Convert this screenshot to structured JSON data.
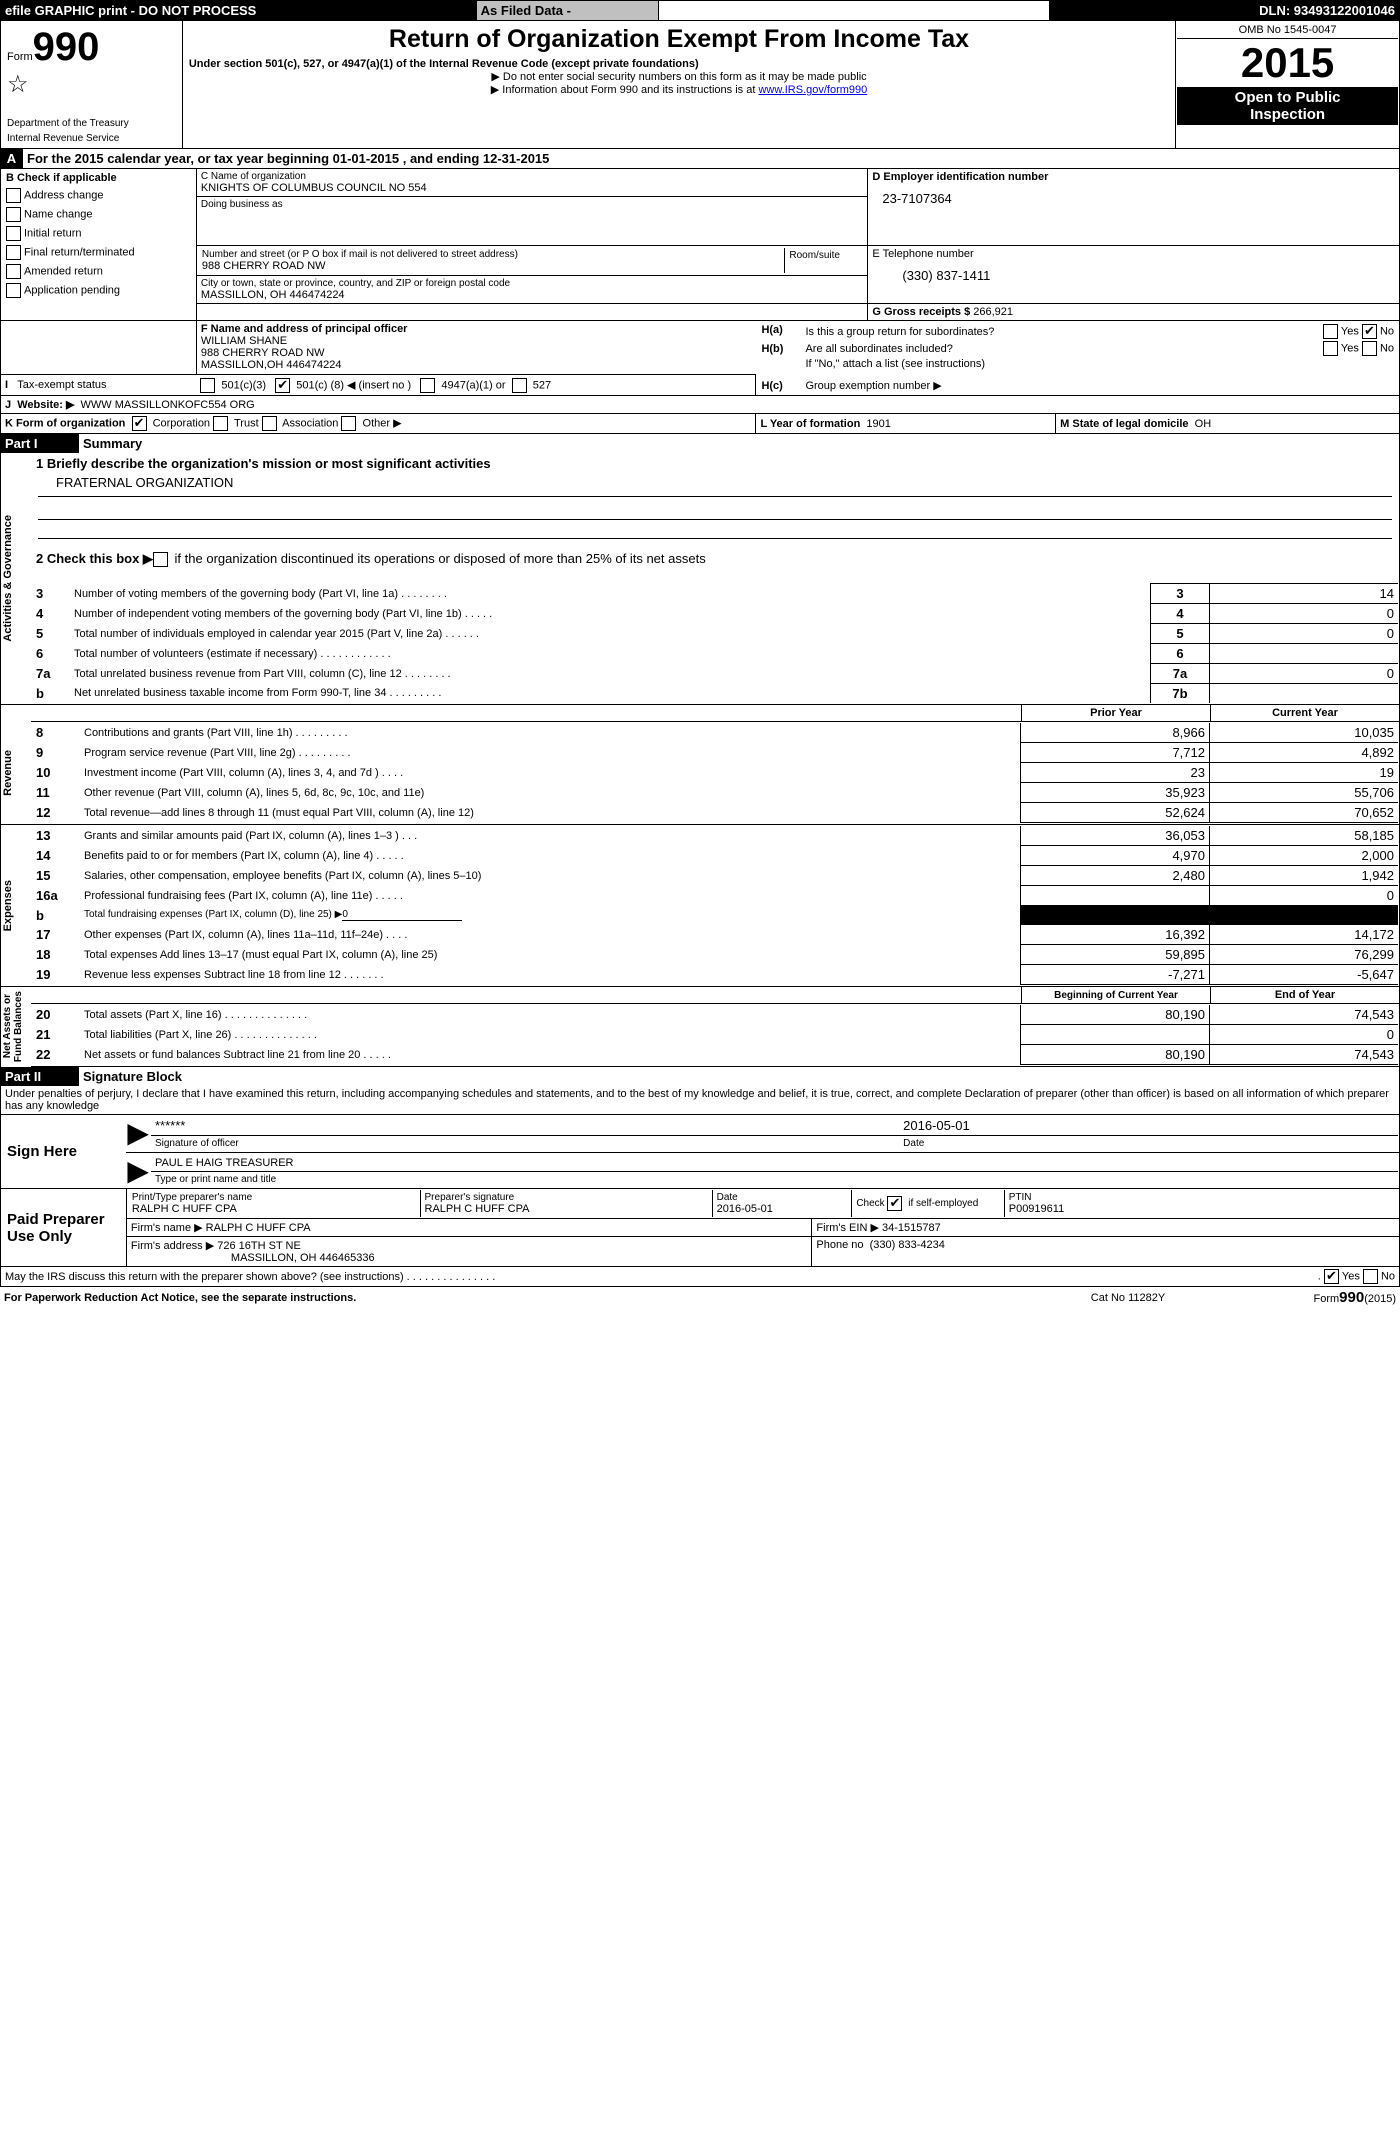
{
  "topbar": {
    "left": "efile GRAPHIC print - DO NOT PROCESS",
    "mid": "As Filed Data -",
    "right": "DLN: 93493122001046"
  },
  "hdr": {
    "form_label": "Form",
    "form_no": "990",
    "dept": "Department of the Treasury\nInternal Revenue Service",
    "title": "Return of Organization Exempt From Income Tax",
    "subtitle": "Under section 501(c), 527, or 4947(a)(1) of the Internal Revenue Code (except private foundations)",
    "note1": "▶ Do not enter social security numbers on this form as it may be made public",
    "note2": "▶ Information about Form 990 and its instructions is at ",
    "link": "www.IRS.gov/form990",
    "omb": "OMB No  1545-0047",
    "year": "2015",
    "open": "Open to Public\nInspection"
  },
  "A": {
    "label": "A",
    "text": "For the 2015 calendar year, or tax year beginning 01-01-2015    , and ending 12-31-2015"
  },
  "B": {
    "label": "B  Check if applicable",
    "items": [
      "Address change",
      "Name change",
      "Initial return",
      "Final return/terminated",
      "Amended return",
      "Application pending"
    ]
  },
  "C": {
    "lblName": "C Name of organization",
    "name": "KNIGHTS OF COLUMBUS COUNCIL NO 554",
    "dba_lbl": "Doing business as",
    "dba": "",
    "addr_lbl": "Number and street (or P O  box if mail is not delivered to street address)",
    "room_lbl": "Room/suite",
    "addr": "988 CHERRY ROAD NW",
    "city_lbl": "City or town, state or province, country, and ZIP or foreign postal code",
    "city": "MASSILLON, OH  446474224"
  },
  "D": {
    "lbl": "D Employer identification number",
    "val": "23-7107364"
  },
  "E": {
    "lbl": "E Telephone number",
    "val": "(330) 837-1411"
  },
  "G": {
    "lbl": "G Gross receipts $",
    "val": "266,921"
  },
  "F": {
    "lbl": "F   Name and address of principal officer",
    "lines": [
      "WILLIAM SHANE",
      "988 CHERRY ROAD NW",
      "MASSILLON,OH 446474224"
    ]
  },
  "H": {
    "a_lbl": "H(a)",
    "a_txt": "Is this a group return for subordinates?",
    "yes": "Yes",
    "no": "No",
    "b_lbl": "H(b)",
    "b_txt": "Are all subordinates included?",
    "b_note": "If \"No,\" attach a list (see instructions)",
    "c_lbl": "H(c)",
    "c_txt": "Group exemption number ▶"
  },
  "I": {
    "lbl": "I",
    "txt": "Tax-exempt status",
    "o1": "501(c)(3)",
    "o2": "501(c) (",
    "o2b": "8",
    "o2c": ") ◀ (insert no )",
    "o3": "4947(a)(1) or",
    "o4": "527"
  },
  "J": {
    "lbl": "J",
    "txt": "Website: ▶",
    "val": "WWW MASSILLONKOFC554 ORG"
  },
  "K": {
    "lbl": "K Form of organization",
    "o1": "Corporation",
    "o2": "Trust",
    "o3": "Association",
    "o4": "Other ▶"
  },
  "L": {
    "lbl": "L Year of formation",
    "val": "1901"
  },
  "M": {
    "lbl": "M State of legal domicile",
    "val": "OH"
  },
  "part1": {
    "hdr": "Part I",
    "title": "Summary",
    "l1": "1 Briefly describe the organization's mission or most significant activities",
    "l1v": "FRATERNAL ORGANIZATION",
    "l2": "2  Check this box ▶",
    "l2b": "if the organization discontinued its operations or disposed of more than 25% of its net assets",
    "rows": [
      {
        "n": "3",
        "t": "Number of voting members of the governing body (Part VI, line 1a)   .    .    .    .    .    .    .    .",
        "c": "3",
        "v": "14"
      },
      {
        "n": "4",
        "t": "Number of independent voting members of the governing body (Part VI, line 1b)    .    .    .    .    .",
        "c": "4",
        "v": "0"
      },
      {
        "n": "5",
        "t": "Total number of individuals employed in calendar year 2015 (Part V, line 2a)    .    .    .    .    .    .",
        "c": "5",
        "v": "0"
      },
      {
        "n": "6",
        "t": "Total number of volunteers (estimate if necessary)    .    .    .    .    .    .    .    .    .    .    .    .",
        "c": "6",
        "v": ""
      },
      {
        "n": "7a",
        "t": "Total unrelated business revenue from Part VIII, column (C), line 12    .    .    .    .    .    .    .    .",
        "c": "7a",
        "v": "0"
      },
      {
        "n": "b",
        "t": "Net unrelated business taxable income from Form 990-T, line 34    .    .    .    .    .    .    .    .    .",
        "c": "7b",
        "v": ""
      }
    ],
    "colhdr1": "Prior Year",
    "colhdr2": "Current Year",
    "rev": [
      {
        "n": "8",
        "t": "Contributions and grants (Part VIII, line 1h)    .    .    .    .    .    .    .    .    .",
        "p": "8,966",
        "c": "10,035"
      },
      {
        "n": "9",
        "t": "Program service revenue (Part VIII, line 2g)     .    .    .    .    .    .    .    .    .",
        "p": "7,712",
        "c": "4,892"
      },
      {
        "n": "10",
        "t": "Investment income (Part VIII, column (A), lines 3, 4, and 7d )    .    .    .    .",
        "p": "23",
        "c": "19"
      },
      {
        "n": "11",
        "t": "Other revenue (Part VIII, column (A), lines 5, 6d, 8c, 9c, 10c, and 11e)",
        "p": "35,923",
        "c": "55,706"
      },
      {
        "n": "12",
        "t": "Total revenue—add lines 8 through 11 (must equal Part VIII, column (A), line 12)",
        "p": "52,624",
        "c": "70,652"
      }
    ],
    "exp": [
      {
        "n": "13",
        "t": "Grants and similar amounts paid (Part IX, column (A), lines 1–3 )    .    .    .",
        "p": "36,053",
        "c": "58,185"
      },
      {
        "n": "14",
        "t": "Benefits paid to or for members (Part IX, column (A), line 4)    .    .    .    .    .",
        "p": "4,970",
        "c": "2,000"
      },
      {
        "n": "15",
        "t": "Salaries, other compensation, employee benefits (Part IX, column (A), lines 5–10)",
        "p": "2,480",
        "c": "1,942"
      },
      {
        "n": "16a",
        "t": "Professional fundraising fees (Part IX, column (A), line 11e)    .    .    .    .    .",
        "p": "",
        "c": "0"
      },
      {
        "n": "b",
        "t": "Total fundraising expenses (Part IX, column (D), line 25) ▶",
        "tval": "0",
        "blk": true
      },
      {
        "n": "17",
        "t": "Other expenses (Part IX, column (A), lines 11a–11d, 11f–24e)    .    .    .    .",
        "p": "16,392",
        "c": "14,172"
      },
      {
        "n": "18",
        "t": "Total expenses  Add lines 13–17 (must equal Part IX, column (A), line 25)",
        "p": "59,895",
        "c": "76,299"
      },
      {
        "n": "19",
        "t": "Revenue less expenses  Subtract line 18 from line 12    .    .    .    .    .    .    .",
        "p": "-7,271",
        "c": "-5,647"
      }
    ],
    "nahdr1": "Beginning of Current Year",
    "nahdr2": "End of Year",
    "na": [
      {
        "n": "20",
        "t": "Total assets (Part X, line 16)    .    .    .    .    .    .    .    .    .    .    .    .    .    .",
        "p": "80,190",
        "c": "74,543"
      },
      {
        "n": "21",
        "t": "Total liabilities (Part X, line 26)    .    .    .    .    .    .    .    .    .    .    .    .    .    .",
        "p": "",
        "c": "0"
      },
      {
        "n": "22",
        "t": "Net assets or fund balances  Subtract line 21 from line 20    .    .    .    .    .",
        "p": "80,190",
        "c": "74,543"
      }
    ],
    "sidelabels": [
      "Activities & Governance",
      "Revenue",
      "Expenses",
      "Net Assets or\nFund Balances"
    ]
  },
  "part2": {
    "hdr": "Part II",
    "title": "Signature Block",
    "perjury": "Under penalties of perjury, I declare that I have examined this return, including accompanying schedules and statements, and to the best of my knowledge and belief, it is true, correct, and complete  Declaration of preparer (other than officer) is based on all information of which preparer has any knowledge",
    "sign_here": "Sign Here",
    "sig": "******",
    "sig_lbl": "Signature of officer",
    "date": "2016-05-01",
    "date_lbl": "Date",
    "name": "PAUL E HAIG TREASURER",
    "name_lbl": "Type or print name and title",
    "paid": "Paid Preparer Use Only",
    "pp_name_lbl": "Print/Type preparer's name",
    "pp_name": "RALPH C HUFF CPA",
    "pp_sig_lbl": "Preparer's signature",
    "pp_sig": "RALPH C HUFF CPA",
    "pp_date_lbl": "Date",
    "pp_date": "2016-05-01",
    "pp_self_lbl": "Check",
    "pp_self_lbl2": "if self-employed",
    "ptin_lbl": "PTIN",
    "ptin": "P00919611",
    "firm_name_lbl": "Firm's name     ▶",
    "firm_name": "RALPH C HUFF CPA",
    "firm_ein_lbl": "Firm's EIN ▶",
    "firm_ein": "34-1515787",
    "firm_addr_lbl": "Firm's address ▶",
    "firm_addr": "726 16TH ST NE",
    "firm_city": "MASSILLON, OH  446465336",
    "phone_lbl": "Phone no",
    "phone": "(330) 833-4234",
    "discuss": "May the IRS discuss this return with the preparer shown above? (see instructions)    .    .    .    .    .    .    .    .    .    .    .    .    .    .    .",
    "yes": "Yes",
    "no": "No"
  },
  "ftr": {
    "left": "For Paperwork Reduction Act Notice, see the separate instructions.",
    "mid": "Cat No  11282Y",
    "right": "Form",
    "right2": "990",
    "right3": "(2015)"
  }
}
